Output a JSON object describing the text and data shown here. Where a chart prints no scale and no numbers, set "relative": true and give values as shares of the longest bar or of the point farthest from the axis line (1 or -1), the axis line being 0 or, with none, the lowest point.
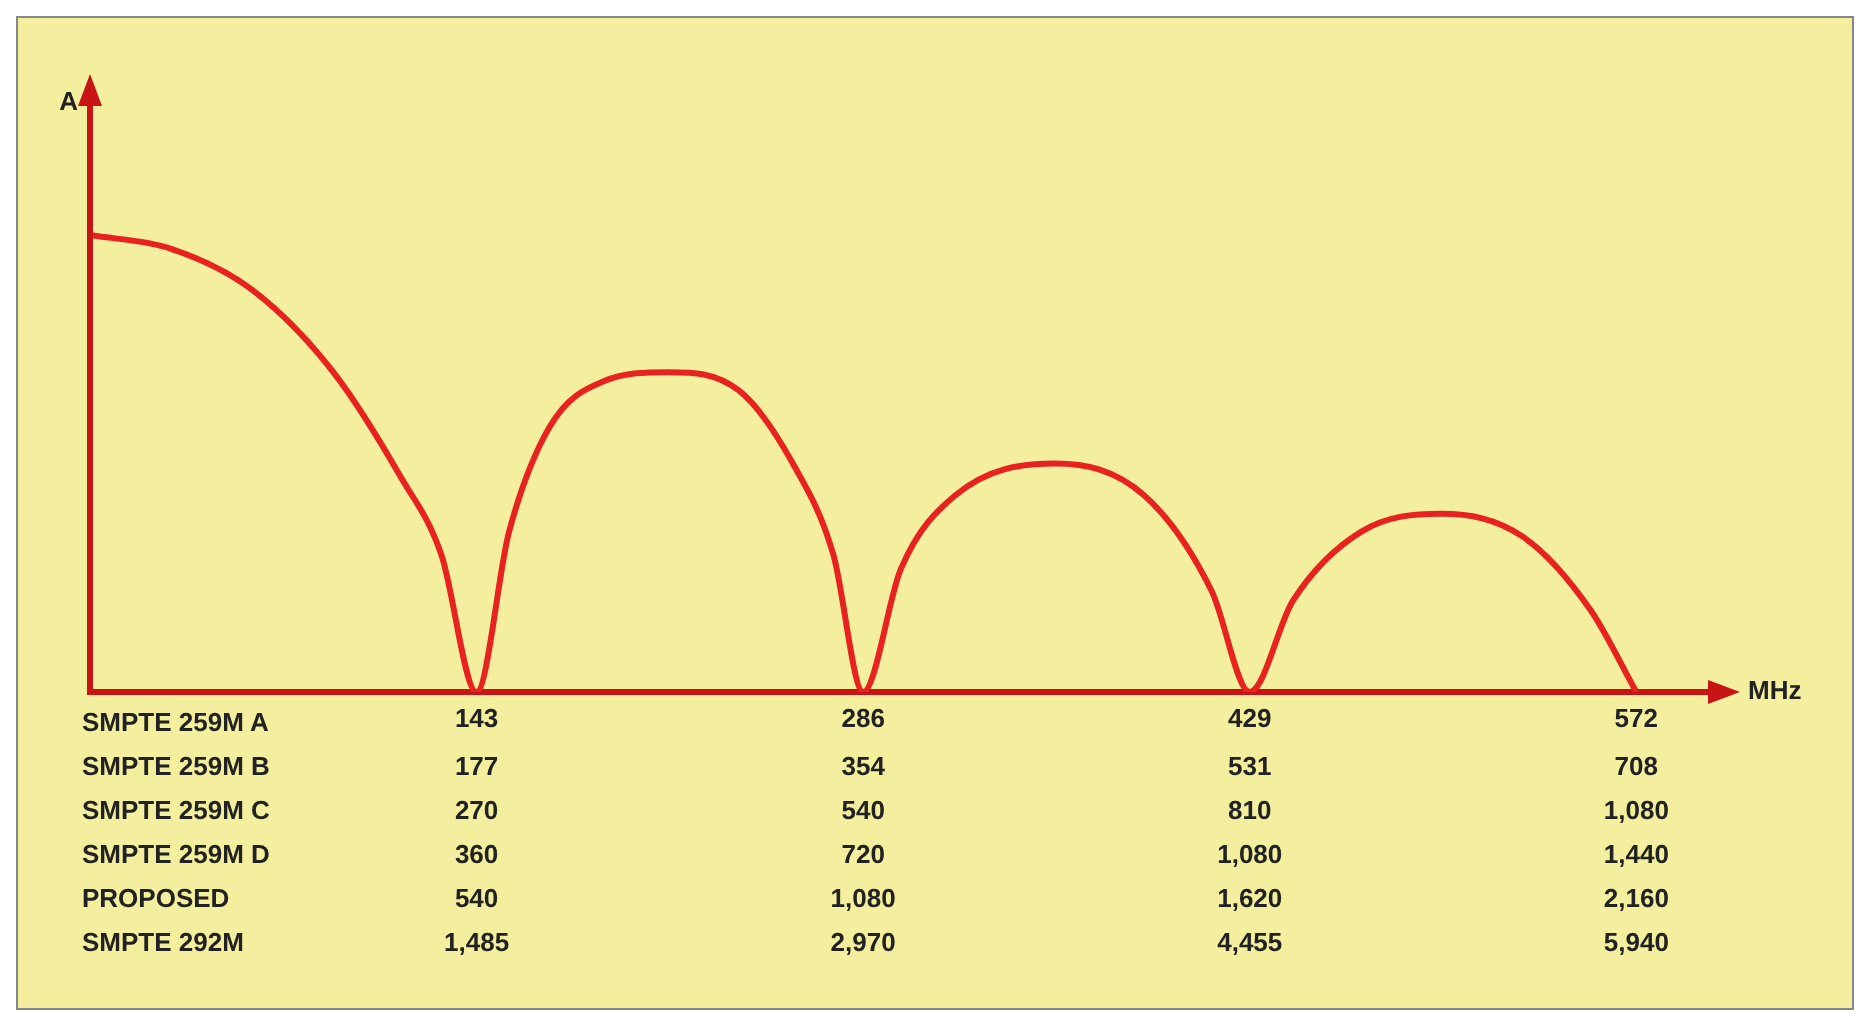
{
  "chart_data": {
    "type": "line",
    "relative": true,
    "ylabel": "A",
    "xlabel": "MHz",
    "color": "#e8231f",
    "xlim": [
      0,
      600
    ],
    "xticks": [
      143,
      286,
      429,
      572
    ],
    "grid": false,
    "legend": false,
    "marker": "none",
    "line_style": "solid",
    "x": [
      0,
      30,
      60,
      90,
      115,
      130,
      143,
      155,
      170,
      190,
      214,
      240,
      260,
      275,
      286,
      300,
      320,
      357,
      390,
      415,
      429,
      445,
      470,
      500,
      530,
      555,
      572
    ],
    "values": [
      1,
      0.97,
      0.88,
      0.7,
      0.47,
      0.3,
      0,
      0.35,
      0.58,
      0.68,
      0.7,
      0.66,
      0.5,
      0.3,
      0,
      0.27,
      0.43,
      0.5,
      0.43,
      0.22,
      0,
      0.2,
      0.35,
      0.39,
      0.34,
      0.18,
      0
    ],
    "annotations": [
      "SMPTE 259M A",
      "SMPTE 259M B",
      "177",
      "354",
      "531",
      "708",
      "SMPTE 259M C",
      "270",
      "540",
      "810",
      "1,080",
      "SMPTE 259M D",
      "360",
      "720",
      "1,080",
      "1,440",
      "PROPOSED",
      "540",
      "1,080",
      "1,620",
      "2,160",
      "SMPTE 292M",
      "1,485",
      "2,970",
      "4,455",
      "5,940"
    ]
  }
}
